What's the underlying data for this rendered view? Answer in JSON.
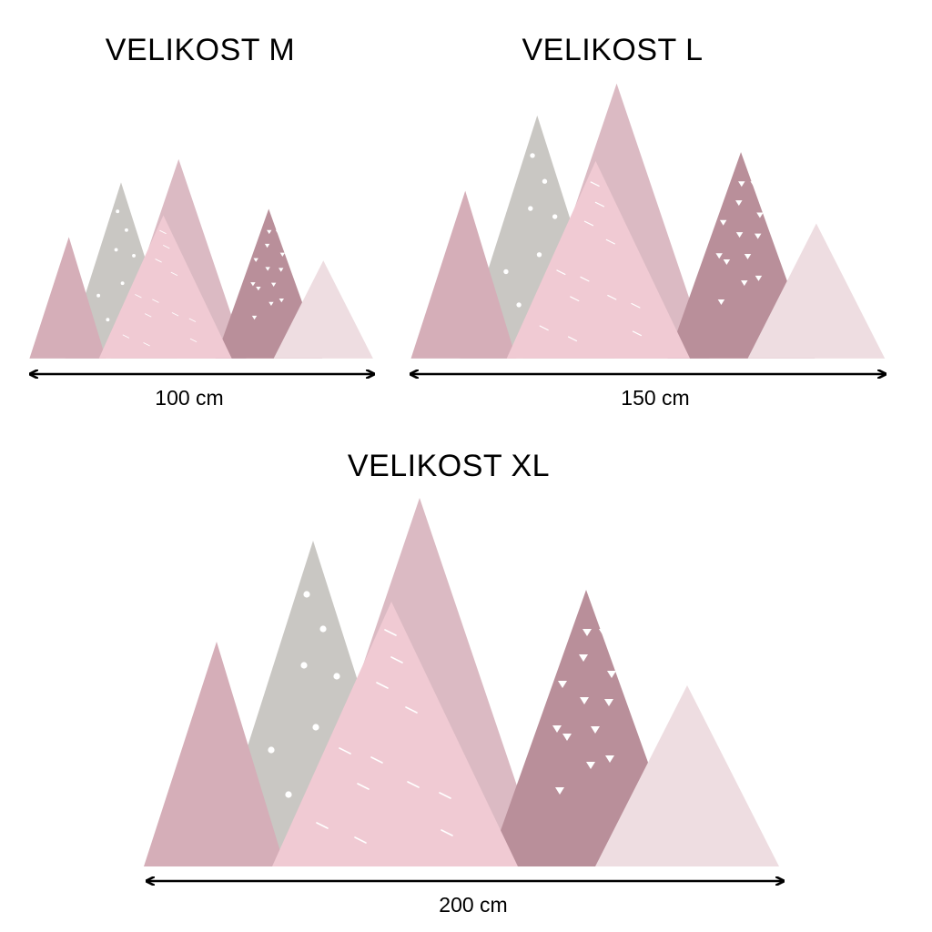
{
  "colors": {
    "dusty_rose": "#D5AEB8",
    "grey": "#C9C7C3",
    "light_pink": "#F0CAD3",
    "mauve": "#DBBAC3",
    "dark_mauve": "#B98F9A",
    "pale_pink": "#EEDDE1",
    "pattern": "#FFFFFF",
    "arrow": "#000000"
  },
  "sizes": [
    {
      "title": "VELIKOST M",
      "width_label": "100 cm"
    },
    {
      "title": "VELIKOST L",
      "width_label": "150 cm"
    },
    {
      "title": "VELIKOST XL",
      "width_label": "200 cm"
    }
  ]
}
